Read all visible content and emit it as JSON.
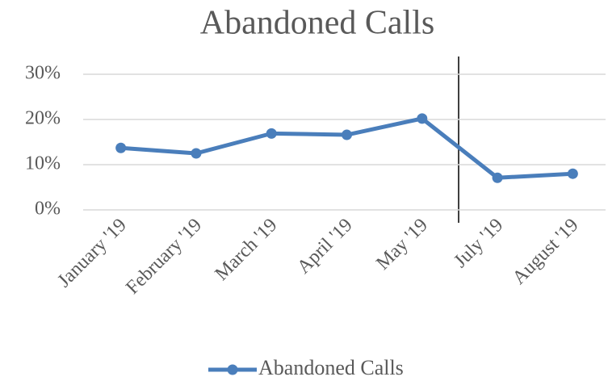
{
  "chart_data": {
    "type": "line",
    "title": "Abandoned Calls",
    "categories": [
      "January '19",
      "February '19",
      "March '19",
      "April '19",
      "May '19",
      "July '19",
      "August '19"
    ],
    "series": [
      {
        "name": "Abandoned Calls",
        "color": "#4a7ebb",
        "values": [
          13.7,
          12.5,
          16.9,
          16.6,
          20.2,
          7.1,
          8.0
        ]
      }
    ],
    "ylim": [
      0,
      30
    ],
    "yticks": [
      {
        "value": 0,
        "label": "0%"
      },
      {
        "value": 10,
        "label": "10%"
      },
      {
        "value": 20,
        "label": "20%"
      },
      {
        "value": 30,
        "label": "30%"
      }
    ],
    "grid": true,
    "legend": "bottom"
  }
}
